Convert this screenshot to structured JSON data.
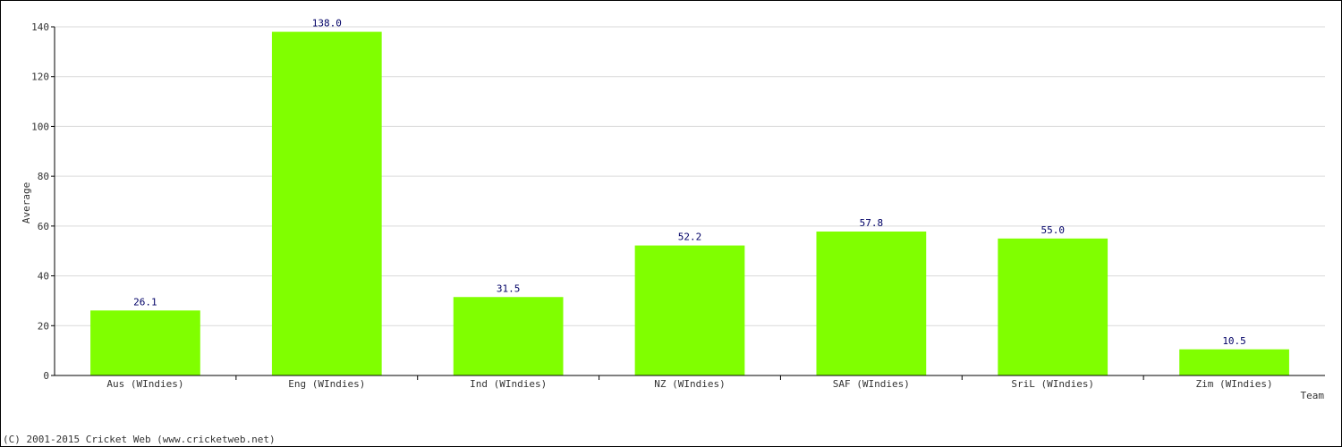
{
  "chart_data": {
    "type": "bar",
    "title": "",
    "xlabel": "Team",
    "ylabel": "Average",
    "ylim": [
      0,
      140
    ],
    "yticks": [
      0,
      20,
      40,
      60,
      80,
      100,
      120,
      140
    ],
    "grid": true,
    "legend": "none",
    "bar_color": "#80ff00",
    "value_label_color": "#000066",
    "categories": [
      "Aus (WIndies)",
      "Eng (WIndies)",
      "Ind (WIndies)",
      "NZ (WIndies)",
      "SAF (WIndies)",
      "SriL (WIndies)",
      "Zim (WIndies)"
    ],
    "values": [
      26.1,
      138.0,
      31.5,
      52.2,
      57.8,
      55.0,
      10.5
    ],
    "value_labels": [
      "26.1",
      "138.0",
      "31.5",
      "52.2",
      "57.8",
      "55.0",
      "10.5"
    ]
  },
  "footer": {
    "copyright": "(C) 2001-2015 Cricket Web (www.cricketweb.net)"
  }
}
